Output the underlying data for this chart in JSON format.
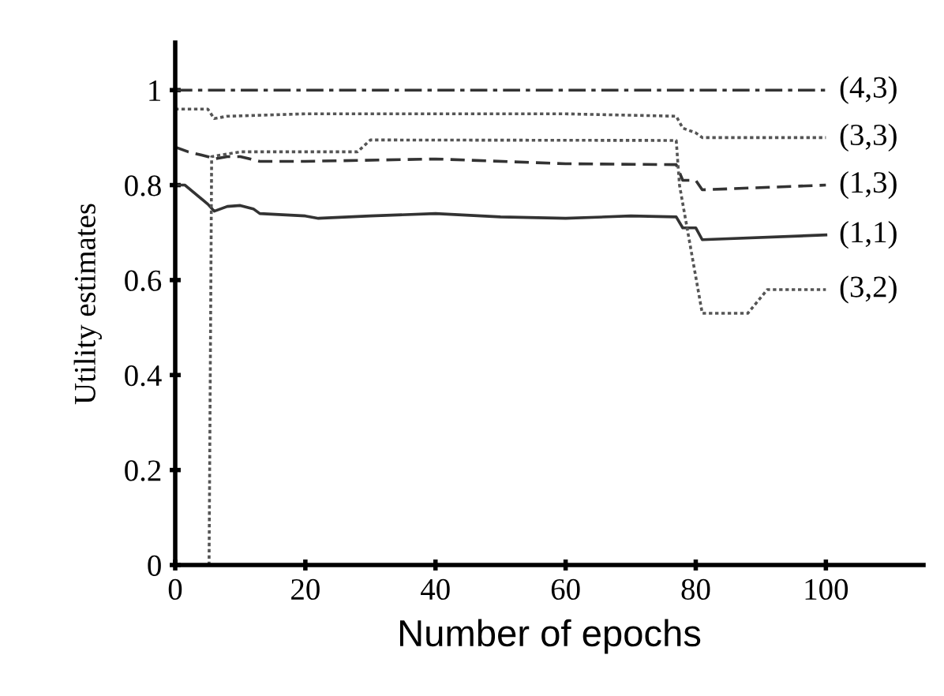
{
  "chart_data": {
    "type": "line",
    "xlabel": "Number of epochs",
    "ylabel": "Utility estimates",
    "xlim": [
      0,
      115
    ],
    "ylim": [
      0,
      1.1
    ],
    "xticks": [
      0,
      20,
      40,
      60,
      80,
      100
    ],
    "yticks": [
      0,
      0.2,
      0.4,
      0.6,
      0.8,
      1
    ],
    "grid": false,
    "legend": false,
    "marker": "none",
    "series": [
      {
        "name": "(4,3)",
        "color": "#333333",
        "line_style": "dashdot",
        "x": [
          0,
          100
        ],
        "values": [
          1,
          1
        ]
      },
      {
        "name": "(3,3)",
        "color": "#555555",
        "line_style": "dotted",
        "x": [
          0,
          5,
          6,
          8,
          20,
          40,
          60,
          77,
          78,
          80,
          81,
          100
        ],
        "values": [
          0.96,
          0.96,
          0.94,
          0.945,
          0.95,
          0.95,
          0.95,
          0.945,
          0.92,
          0.91,
          0.9,
          0.9
        ]
      },
      {
        "name": "(1,3)",
        "color": "#333333",
        "line_style": "dashed",
        "x": [
          0,
          2,
          5,
          6,
          8,
          10,
          13,
          20,
          40,
          60,
          77,
          78,
          80,
          81,
          100
        ],
        "values": [
          0.88,
          0.87,
          0.86,
          0.855,
          0.86,
          0.86,
          0.85,
          0.85,
          0.855,
          0.845,
          0.843,
          0.81,
          0.81,
          0.79,
          0.8
        ]
      },
      {
        "name": "(1,1)",
        "color": "#333333",
        "line_style": "solid",
        "x": [
          0,
          1.5,
          5,
          6,
          8,
          10,
          12,
          13,
          20,
          22,
          30,
          40,
          50,
          60,
          70,
          77,
          78,
          80,
          81,
          100
        ],
        "values": [
          0.8,
          0.8,
          0.76,
          0.745,
          0.755,
          0.757,
          0.75,
          0.74,
          0.735,
          0.73,
          0.735,
          0.74,
          0.733,
          0.73,
          0.735,
          0.733,
          0.71,
          0.71,
          0.685,
          0.695
        ]
      },
      {
        "name": "(3,2)",
        "color": "#555555",
        "line_style": "dotted",
        "x": [
          5.2,
          5.6,
          10,
          28,
          30,
          77,
          77.5,
          81,
          88,
          91,
          100
        ],
        "values": [
          0,
          0.86,
          0.87,
          0.87,
          0.895,
          0.894,
          0.8,
          0.53,
          0.53,
          0.58,
          0.58
        ]
      }
    ]
  }
}
